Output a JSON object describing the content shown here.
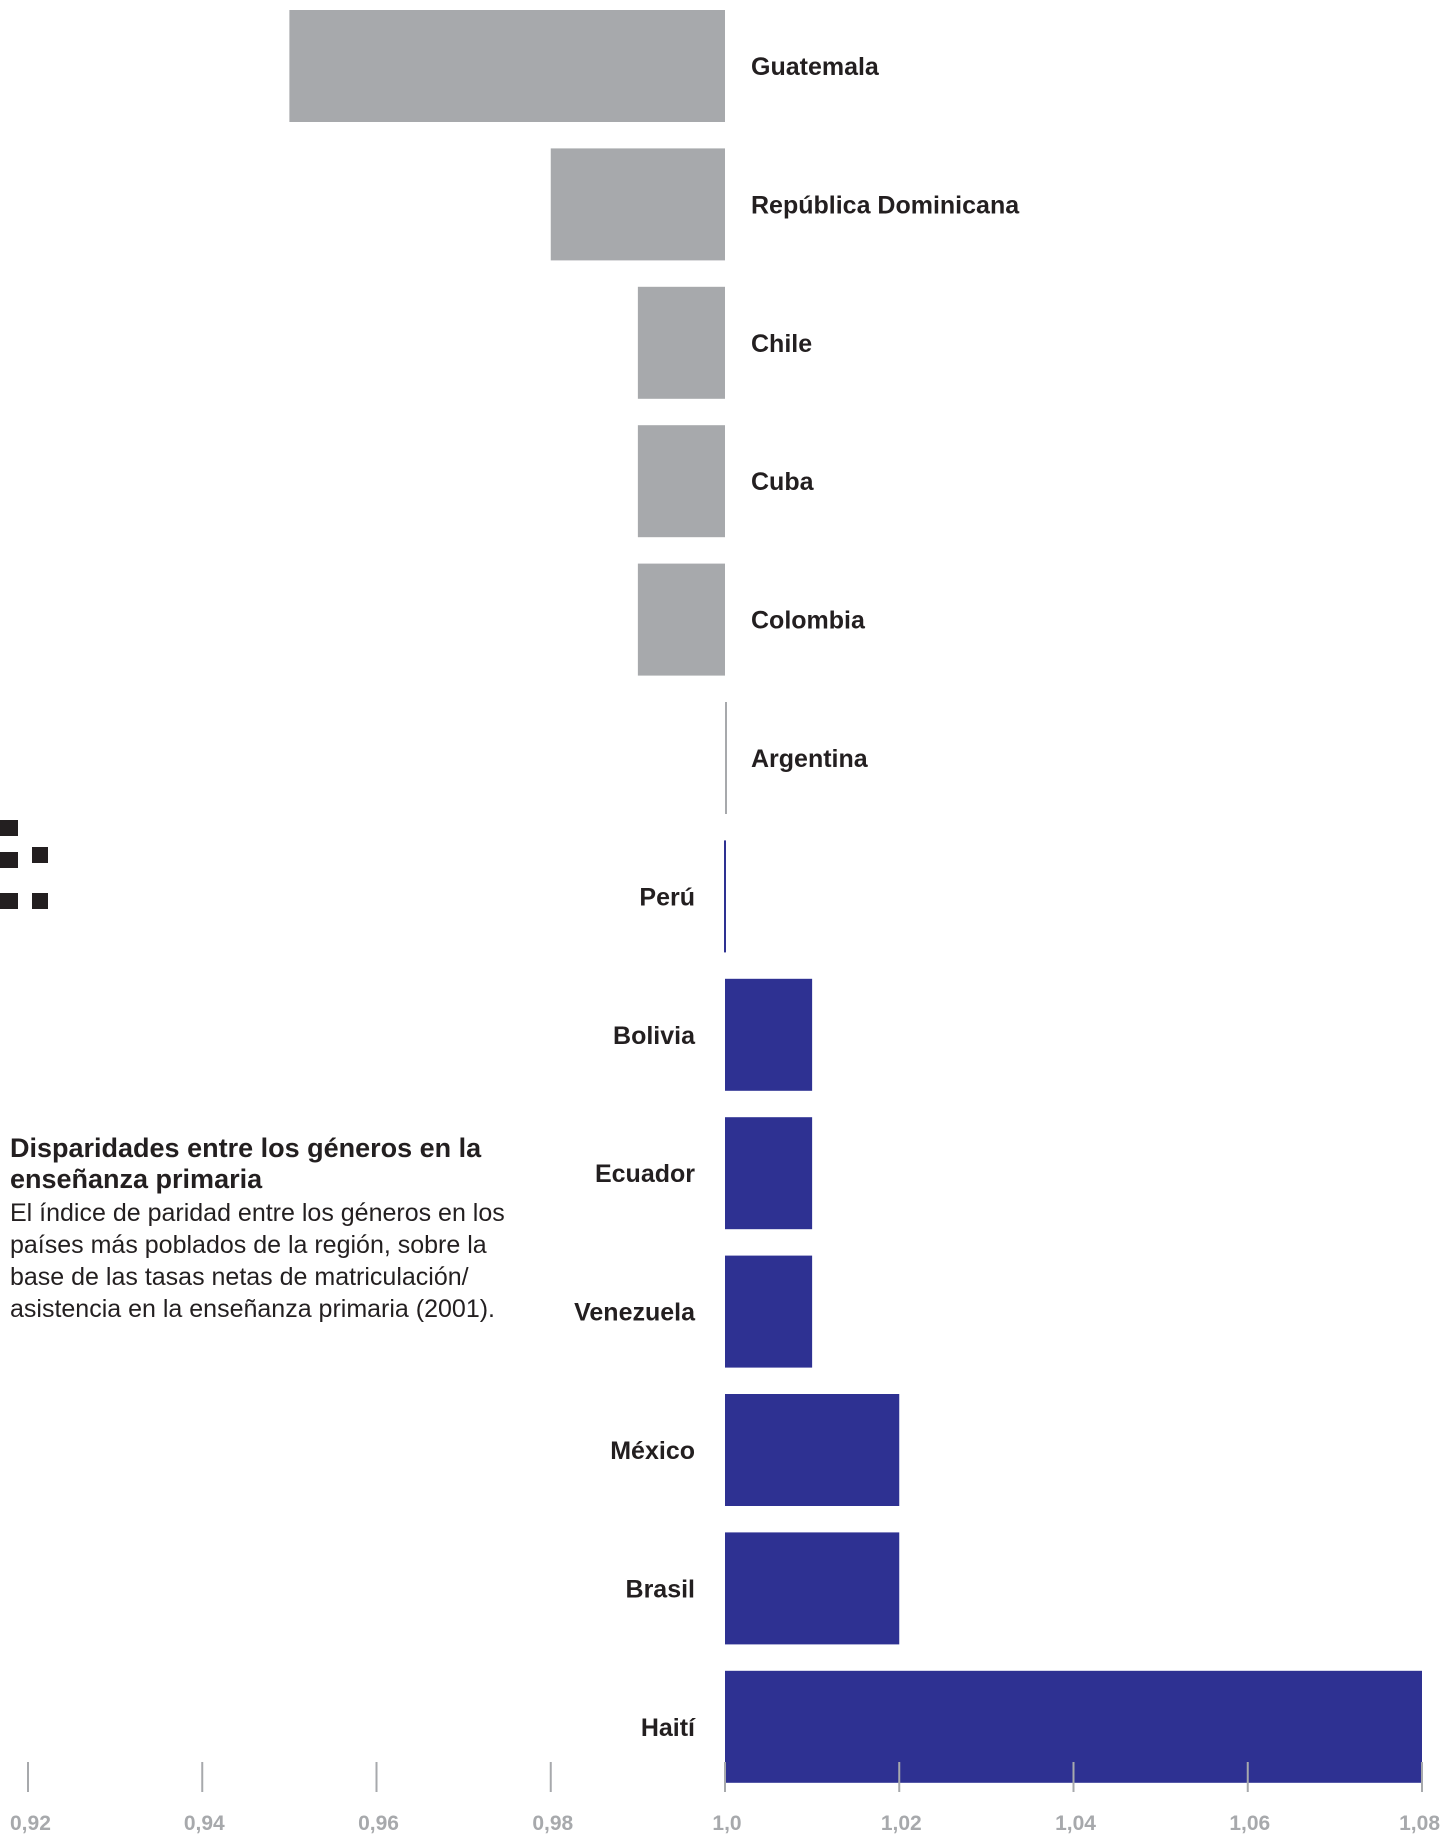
{
  "chart_data": {
    "type": "bar",
    "orientation": "horizontal",
    "baseline": 1.0,
    "title": "Disparidades entre los géneros en la enseñanza primaria",
    "subtitle": "El índice de paridad entre los géneros en los países más poblados de la región, sobre la base de las tasas netas de matriculación/ asistencia en la enseñanza primaria (2001).",
    "categories": [
      "Guatemala",
      "República Dominicana",
      "Chile",
      "Cuba",
      "Colombia",
      "Argentina",
      "Perú",
      "Bolivia",
      "Ecuador",
      "Venezuela",
      "México",
      "Brasil",
      "Haití"
    ],
    "values": [
      0.95,
      0.98,
      0.99,
      0.99,
      0.99,
      1.0,
      1.0,
      1.01,
      1.01,
      1.01,
      1.02,
      1.02,
      1.08
    ],
    "xlim": [
      0.92,
      1.08
    ],
    "xticks": [
      "0,92",
      "0,94",
      "0,96",
      "0,98",
      "1,0",
      "1,02",
      "1,04",
      "1,06",
      "1,08"
    ],
    "xtick_values": [
      0.92,
      0.94,
      0.96,
      0.98,
      1.0,
      1.02,
      1.04,
      1.06,
      1.08
    ],
    "xlabel": "",
    "ylabel": "",
    "grid": false,
    "colors": {
      "below_parity": "#a7a9ac",
      "above_parity": "#2e3192",
      "text": "#231f20",
      "tick": "#a7a9ac"
    }
  }
}
